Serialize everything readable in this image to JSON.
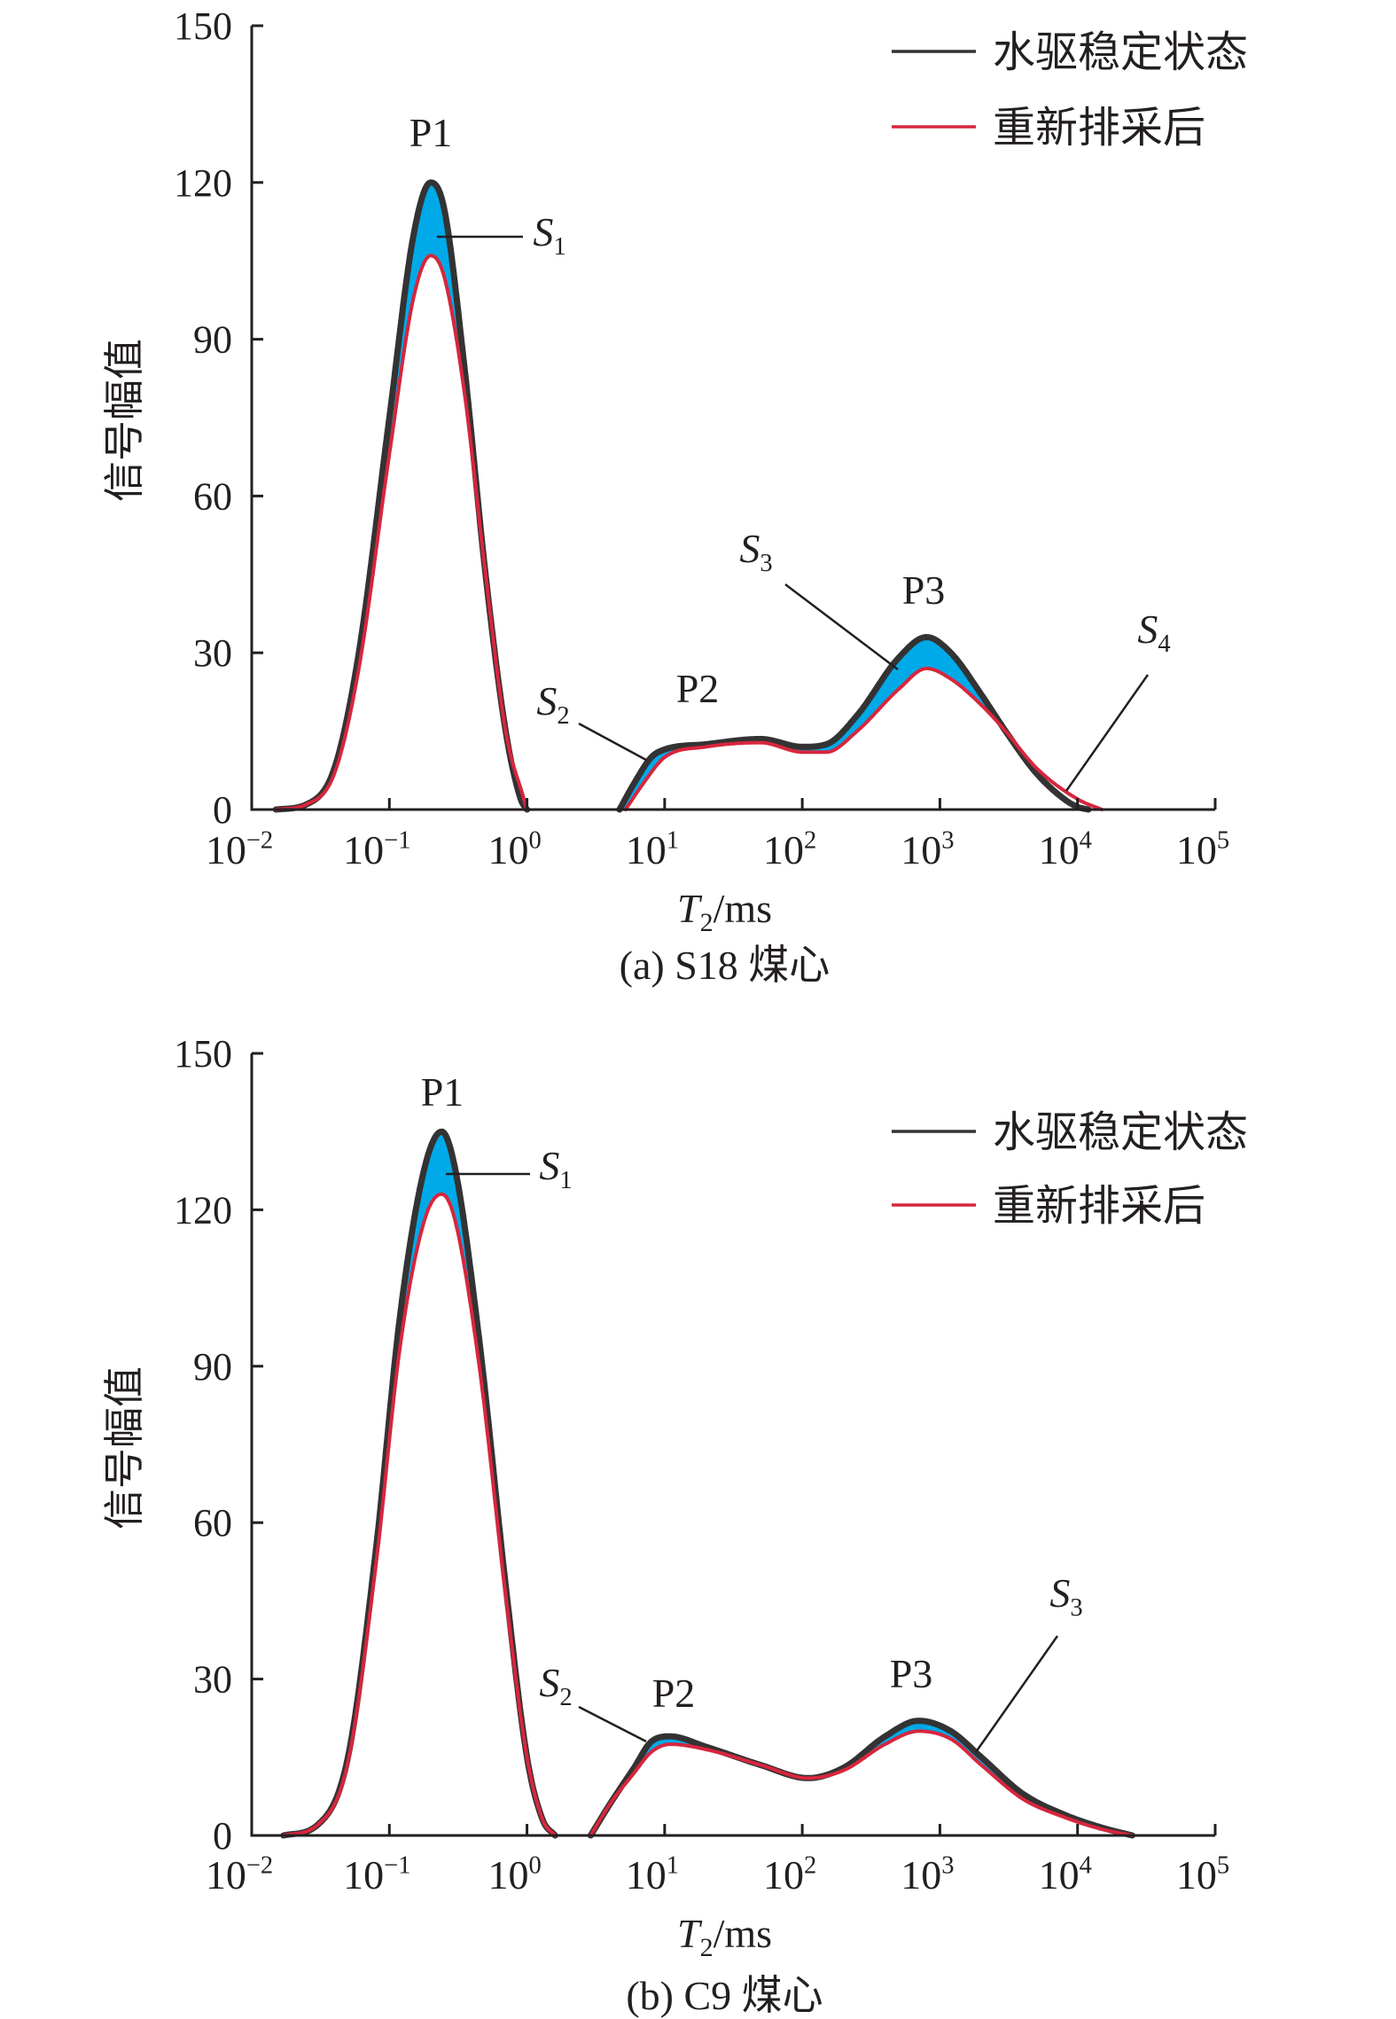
{
  "colors": {
    "series_steady": "#333333",
    "series_after": "#d7263d",
    "fill": "#00a9e8"
  },
  "chart_data": [
    {
      "type": "line",
      "caption": "(a) S18 煤心",
      "xlabel_main": "T",
      "xlabel_sub": "2",
      "xlabel_unit": "/ms",
      "ylabel": "信号幅值",
      "xscale": "log",
      "xlim": [
        0.01,
        100000
      ],
      "ylim": [
        0,
        150
      ],
      "yticks": [
        "0",
        "30",
        "60",
        "90",
        "120",
        "150"
      ],
      "xticks": [
        {
          "base": "10",
          "exp": "−2"
        },
        {
          "base": "10",
          "exp": "−1"
        },
        {
          "base": "10",
          "exp": "0"
        },
        {
          "base": "10",
          "exp": "1"
        },
        {
          "base": "10",
          "exp": "2"
        },
        {
          "base": "10",
          "exp": "3"
        },
        {
          "base": "10",
          "exp": "4"
        },
        {
          "base": "10",
          "exp": "5"
        }
      ],
      "legend_position": "top-right",
      "grid": false,
      "series": [
        {
          "name": "水驱稳定状态",
          "color": "#333333",
          "segments": [
            [
              [
                0.015,
                0
              ],
              [
                0.025,
                1
              ],
              [
                0.04,
                8
              ],
              [
                0.06,
                30
              ],
              [
                0.1,
                75
              ],
              [
                0.15,
                110
              ],
              [
                0.2,
                120
              ],
              [
                0.25,
                115
              ],
              [
                0.35,
                85
              ],
              [
                0.5,
                45
              ],
              [
                0.7,
                15
              ],
              [
                0.9,
                2
              ],
              [
                1.0,
                0
              ]
            ],
            [
              [
                4.7,
                0
              ],
              [
                6,
                5
              ],
              [
                8,
                10
              ],
              [
                10,
                11.5
              ],
              [
                20,
                12.5
              ],
              [
                50,
                13.5
              ],
              [
                100,
                12
              ],
              [
                150,
                12.5
              ],
              [
                250,
                18
              ],
              [
                500,
                29
              ],
              [
                800,
                33
              ],
              [
                1200,
                30
              ],
              [
                2000,
                22
              ],
              [
                3000,
                15
              ],
              [
                5000,
                7
              ],
              [
                8000,
                2
              ],
              [
                10000,
                0.5
              ],
              [
                12000,
                0
              ]
            ]
          ]
        },
        {
          "name": "重新排采后",
          "color": "#d7263d",
          "segments": [
            [
              [
                0.015,
                0
              ],
              [
                0.025,
                1
              ],
              [
                0.04,
                7
              ],
              [
                0.06,
                27
              ],
              [
                0.1,
                68
              ],
              [
                0.15,
                98
              ],
              [
                0.2,
                106
              ],
              [
                0.25,
                102
              ],
              [
                0.35,
                80
              ],
              [
                0.5,
                45
              ],
              [
                0.7,
                15
              ],
              [
                0.95,
                2
              ],
              [
                1.0,
                0
              ]
            ],
            [
              [
                5.2,
                0
              ],
              [
                7,
                5
              ],
              [
                10,
                10
              ],
              [
                20,
                12
              ],
              [
                50,
                12.8
              ],
              [
                100,
                11
              ],
              [
                150,
                11
              ],
              [
                250,
                15
              ],
              [
                500,
                23
              ],
              [
                800,
                27
              ],
              [
                1200,
                25
              ],
              [
                2000,
                20
              ],
              [
                3000,
                15
              ],
              [
                5000,
                8
              ],
              [
                10000,
                2
              ],
              [
                15000,
                0
              ]
            ]
          ]
        }
      ],
      "annotations": {
        "peaks": [
          "P1",
          "P2",
          "P3"
        ],
        "areas": [
          {
            "main": "S",
            "sub": "1"
          },
          {
            "main": "S",
            "sub": "2"
          },
          {
            "main": "S",
            "sub": "3"
          },
          {
            "main": "S",
            "sub": "4"
          }
        ]
      }
    },
    {
      "type": "line",
      "caption": "(b) C9 煤心",
      "xlabel_main": "T",
      "xlabel_sub": "2",
      "xlabel_unit": "/ms",
      "ylabel": "信号幅值",
      "xscale": "log",
      "xlim": [
        0.01,
        100000
      ],
      "ylim": [
        0,
        150
      ],
      "yticks": [
        "0",
        "30",
        "60",
        "90",
        "120",
        "150"
      ],
      "xticks": [
        {
          "base": "10",
          "exp": "−2"
        },
        {
          "base": "10",
          "exp": "−1"
        },
        {
          "base": "10",
          "exp": "0"
        },
        {
          "base": "10",
          "exp": "1"
        },
        {
          "base": "10",
          "exp": "2"
        },
        {
          "base": "10",
          "exp": "3"
        },
        {
          "base": "10",
          "exp": "4"
        },
        {
          "base": "10",
          "exp": "5"
        }
      ],
      "legend_position": "top-right",
      "grid": false,
      "series": [
        {
          "name": "水驱稳定状态",
          "color": "#333333",
          "segments": [
            [
              [
                0.017,
                0
              ],
              [
                0.03,
                2
              ],
              [
                0.05,
                15
              ],
              [
                0.08,
                55
              ],
              [
                0.12,
                100
              ],
              [
                0.18,
                128
              ],
              [
                0.24,
                135
              ],
              [
                0.3,
                128
              ],
              [
                0.45,
                95
              ],
              [
                0.7,
                48
              ],
              [
                1.0,
                15
              ],
              [
                1.3,
                3
              ],
              [
                1.6,
                0
              ]
            ],
            [
              [
                2.9,
                0
              ],
              [
                4,
                6
              ],
              [
                6,
                13
              ],
              [
                8,
                18
              ],
              [
                11,
                19
              ],
              [
                20,
                17
              ],
              [
                50,
                13.5
              ],
              [
                110,
                11
              ],
              [
                200,
                13
              ],
              [
                400,
                19
              ],
              [
                700,
                22
              ],
              [
                1200,
                20
              ],
              [
                2000,
                15
              ],
              [
                4000,
                8
              ],
              [
                8000,
                4
              ],
              [
                15000,
                1.5
              ],
              [
                25000,
                0
              ]
            ]
          ]
        },
        {
          "name": "重新排采后",
          "color": "#d7263d",
          "segments": [
            [
              [
                0.017,
                0
              ],
              [
                0.03,
                2
              ],
              [
                0.05,
                14
              ],
              [
                0.08,
                52
              ],
              [
                0.12,
                94
              ],
              [
                0.18,
                118
              ],
              [
                0.24,
                123
              ],
              [
                0.3,
                118
              ],
              [
                0.45,
                90
              ],
              [
                0.7,
                46
              ],
              [
                1.0,
                15
              ],
              [
                1.3,
                3
              ],
              [
                1.6,
                0
              ]
            ],
            [
              [
                2.9,
                0
              ],
              [
                4,
                6
              ],
              [
                6,
                12
              ],
              [
                8,
                16
              ],
              [
                11,
                17.5
              ],
              [
                20,
                16.5
              ],
              [
                50,
                13.5
              ],
              [
                110,
                11
              ],
              [
                200,
                12.5
              ],
              [
                400,
                17.5
              ],
              [
                700,
                20
              ],
              [
                1200,
                18.5
              ],
              [
                2000,
                13.5
              ],
              [
                4000,
                7
              ],
              [
                8000,
                3.5
              ],
              [
                15000,
                1.2
              ],
              [
                25000,
                0
              ]
            ]
          ]
        }
      ],
      "annotations": {
        "peaks": [
          "P1",
          "P2",
          "P3"
        ],
        "areas": [
          {
            "main": "S",
            "sub": "1"
          },
          {
            "main": "S",
            "sub": "2"
          },
          {
            "main": "S",
            "sub": "3"
          }
        ]
      }
    }
  ]
}
